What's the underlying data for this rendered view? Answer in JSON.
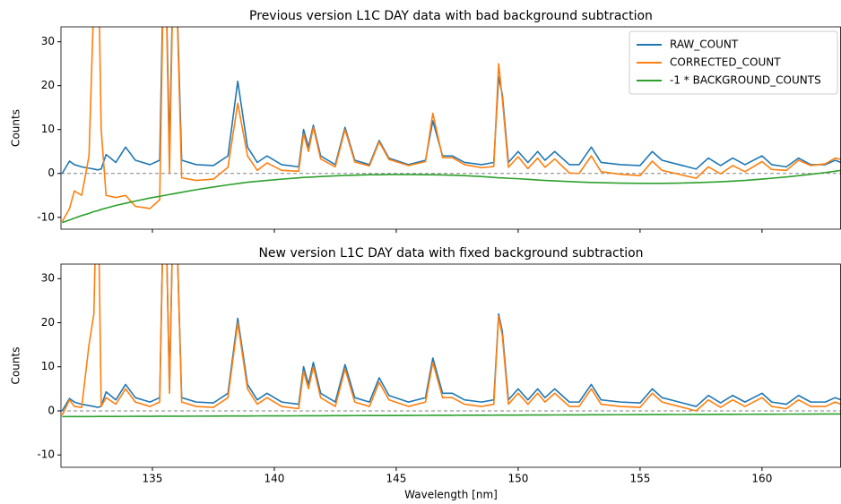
{
  "chart_data": [
    {
      "type": "line",
      "title": "Previous version L1C DAY data with bad background subtraction",
      "ylabel": "Counts",
      "x": [
        131.3,
        131.6,
        131.8,
        132.1,
        132.4,
        132.6,
        132.75,
        132.9,
        133.1,
        133.5,
        133.9,
        134.3,
        134.9,
        135.3,
        135.5,
        135.7,
        135.9,
        136.2,
        136.8,
        137.5,
        138.1,
        138.5,
        138.9,
        139.3,
        139.7,
        140.3,
        141.0,
        141.2,
        141.4,
        141.6,
        141.9,
        142.5,
        142.9,
        143.3,
        143.9,
        144.3,
        144.7,
        145.5,
        146.2,
        146.5,
        146.9,
        147.3,
        147.8,
        148.5,
        149.0,
        149.2,
        149.35,
        149.6,
        150.0,
        150.4,
        150.8,
        151.1,
        151.5,
        152.1,
        152.5,
        153.0,
        153.4,
        154.2,
        155.0,
        155.5,
        155.9,
        156.6,
        157.3,
        157.8,
        158.3,
        158.8,
        159.3,
        160.0,
        160.4,
        161.0,
        161.5,
        162.0,
        162.6,
        163.0,
        163.24
      ],
      "series": [
        {
          "name": "RAW_COUNT",
          "color": "#1f77b4",
          "values": [
            0,
            2.8,
            2,
            1.5,
            1.2,
            1,
            0.8,
            1,
            4.3,
            2.5,
            6,
            3,
            2,
            3,
            60,
            5,
            60,
            3,
            2,
            1.8,
            4,
            21,
            6,
            2.5,
            4,
            2,
            1.5,
            10,
            6,
            11,
            4,
            2,
            10.5,
            3,
            2,
            7.5,
            3.5,
            2,
            3,
            12,
            4,
            4,
            2.5,
            2,
            2.5,
            22,
            18,
            2.5,
            5,
            2.5,
            5,
            3,
            5,
            2,
            2,
            6,
            2.5,
            2,
            1.8,
            5,
            3,
            2,
            1,
            3.5,
            1.8,
            3.5,
            2,
            4,
            2,
            1.5,
            3.5,
            2,
            2,
            3,
            2.5
          ]
        },
        {
          "name": "CORRECTED_COUNT",
          "color": "#ff7f0e",
          "values": [
            -11,
            -8,
            -4,
            -5,
            4,
            40,
            60,
            10,
            -5,
            -5.5,
            -5,
            -7.5,
            -8,
            -6,
            60,
            0,
            60,
            -1,
            -1.6,
            -1.3,
            1.4,
            16,
            4,
            0.7,
            2.4,
            0.7,
            0.5,
            9,
            5,
            10.5,
            3.3,
            1.5,
            10,
            2.6,
            1.7,
            7.2,
            3.2,
            1.8,
            2.7,
            13.7,
            3.6,
            3.6,
            2,
            1.3,
            1.6,
            25,
            17,
            1.4,
            3.8,
            1.1,
            3.5,
            1.4,
            3.3,
            0.1,
            0,
            4,
            0.4,
            -0.2,
            -0.5,
            2.8,
            0.7,
            -0.2,
            -1.1,
            1.5,
            -0.1,
            1.8,
            0.4,
            2.7,
            0.9,
            0.7,
            3,
            1.8,
            2.2,
            3.5,
            3.2
          ]
        },
        {
          "name": "-1 * BACKGROUND_COUNTS",
          "color": "#2ca02c",
          "values": [
            -11.2,
            -10.6,
            -10.2,
            -9.6,
            -9.1,
            -8.7,
            -8.5,
            -8.2,
            -7.9,
            -7.3,
            -6.8,
            -6.3,
            -5.6,
            -5.2,
            -5.0,
            -4.8,
            -4.6,
            -4.3,
            -3.7,
            -3.1,
            -2.6,
            -2.3,
            -2.0,
            -1.8,
            -1.6,
            -1.3,
            -1.0,
            -0.9,
            -0.85,
            -0.8,
            -0.7,
            -0.55,
            -0.45,
            -0.4,
            -0.3,
            -0.3,
            -0.25,
            -0.25,
            -0.3,
            -0.3,
            -0.35,
            -0.4,
            -0.5,
            -0.7,
            -0.9,
            -1.0,
            -1.0,
            -1.1,
            -1.2,
            -1.35,
            -1.5,
            -1.6,
            -1.7,
            -1.85,
            -1.95,
            -2.05,
            -2.1,
            -2.2,
            -2.25,
            -2.25,
            -2.25,
            -2.2,
            -2.1,
            -2.0,
            -1.9,
            -1.75,
            -1.6,
            -1.3,
            -1.1,
            -0.8,
            -0.5,
            -0.2,
            0.2,
            0.5,
            0.7
          ]
        }
      ],
      "xlim": [
        131.25,
        163.24
      ],
      "ylim": [
        -12.7,
        33.4
      ],
      "xticks": [
        135,
        140,
        145,
        150,
        155,
        160
      ],
      "show_xtick_labels": false,
      "yticks": [
        -10,
        0,
        10,
        20,
        30
      ],
      "reference_line": 0,
      "legend": "upper right"
    },
    {
      "type": "line",
      "title": "New version L1C DAY data with fixed background subtraction",
      "ylabel": "Counts",
      "xlabel": "Wavelength [nm]",
      "x": [
        131.3,
        131.6,
        131.8,
        132.1,
        132.4,
        132.6,
        132.75,
        132.9,
        133.1,
        133.5,
        133.9,
        134.3,
        134.9,
        135.3,
        135.5,
        135.7,
        135.9,
        136.2,
        136.8,
        137.5,
        138.1,
        138.5,
        138.9,
        139.3,
        139.7,
        140.3,
        141.0,
        141.2,
        141.4,
        141.6,
        141.9,
        142.5,
        142.9,
        143.3,
        143.9,
        144.3,
        144.7,
        145.5,
        146.2,
        146.5,
        146.9,
        147.3,
        147.8,
        148.5,
        149.0,
        149.2,
        149.35,
        149.6,
        150.0,
        150.4,
        150.8,
        151.1,
        151.5,
        152.1,
        152.5,
        153.0,
        153.4,
        154.2,
        155.0,
        155.5,
        155.9,
        156.6,
        157.3,
        157.8,
        158.3,
        158.8,
        159.3,
        160.0,
        160.4,
        161.0,
        161.5,
        162.0,
        162.6,
        163.0,
        163.24
      ],
      "series": [
        {
          "name": "RAW_COUNT",
          "color": "#1f77b4",
          "values": [
            0,
            2.8,
            2,
            1.5,
            1.2,
            1,
            0.8,
            1,
            4.3,
            2.5,
            6,
            3,
            2,
            3,
            60,
            5,
            60,
            3,
            2,
            1.8,
            4,
            21,
            6,
            2.5,
            4,
            2,
            1.5,
            10,
            6,
            11,
            4,
            2,
            10.5,
            3,
            2,
            7.5,
            3.5,
            2,
            3,
            12,
            4,
            4,
            2.5,
            2,
            2.5,
            22,
            18,
            2.5,
            5,
            2.5,
            5,
            3,
            5,
            2,
            2,
            6,
            2.5,
            2,
            1.8,
            5,
            3,
            2,
            1,
            3.5,
            1.8,
            3.5,
            2,
            4,
            2,
            1.5,
            3.5,
            2,
            2,
            3,
            2.5
          ]
        },
        {
          "name": "CORRECTED_COUNT",
          "color": "#ff7f0e",
          "values": [
            -1,
            2.5,
            1,
            0.8,
            15,
            22,
            60,
            1,
            3,
            1.5,
            5,
            2,
            1,
            2,
            60,
            4,
            60,
            2,
            1,
            0.8,
            3,
            20,
            5,
            1.5,
            3,
            1,
            0.5,
            9,
            5,
            10,
            3,
            1,
            9.5,
            2,
            1,
            6.5,
            2.5,
            1,
            2,
            11,
            3,
            3,
            1.5,
            1,
            1.5,
            21.5,
            17,
            1.5,
            4,
            1.5,
            4,
            2,
            4,
            1,
            1,
            5,
            1.5,
            1,
            0.8,
            4,
            2,
            1,
            0,
            2.5,
            0.8,
            2.5,
            1,
            3,
            1,
            0.5,
            2.5,
            1,
            1,
            2,
            1.5
          ]
        },
        {
          "name": "-1 * BACKGROUND_COUNTS",
          "color": "#2ca02c",
          "values": [
            -1.3,
            -1.29,
            -1.29,
            -1.28,
            -1.28,
            -1.28,
            -1.27,
            -1.27,
            -1.27,
            -1.26,
            -1.25,
            -1.24,
            -1.23,
            -1.22,
            -1.22,
            -1.22,
            -1.21,
            -1.21,
            -1.2,
            -1.18,
            -1.17,
            -1.16,
            -1.16,
            -1.15,
            -1.14,
            -1.13,
            -1.12,
            -1.11,
            -1.11,
            -1.11,
            -1.1,
            -1.09,
            -1.08,
            -1.07,
            -1.06,
            -1.06,
            -1.05,
            -1.03,
            -1.02,
            -1.01,
            -1.01,
            -1.0,
            -0.99,
            -0.98,
            -0.97,
            -0.96,
            -0.96,
            -0.96,
            -0.95,
            -0.94,
            -0.93,
            -0.93,
            -0.92,
            -0.91,
            -0.9,
            -0.89,
            -0.88,
            -0.87,
            -0.85,
            -0.84,
            -0.84,
            -0.82,
            -0.81,
            -0.8,
            -0.79,
            -0.78,
            -0.77,
            -0.76,
            -0.75,
            -0.74,
            -0.73,
            -0.72,
            -0.71,
            -0.7,
            -0.7
          ]
        }
      ],
      "xlim": [
        131.25,
        163.24
      ],
      "ylim": [
        -12.8,
        33.3
      ],
      "xticks": [
        135,
        140,
        145,
        150,
        155,
        160
      ],
      "show_xtick_labels": true,
      "yticks": [
        -10,
        0,
        10,
        20,
        30
      ],
      "reference_line": 0
    }
  ]
}
